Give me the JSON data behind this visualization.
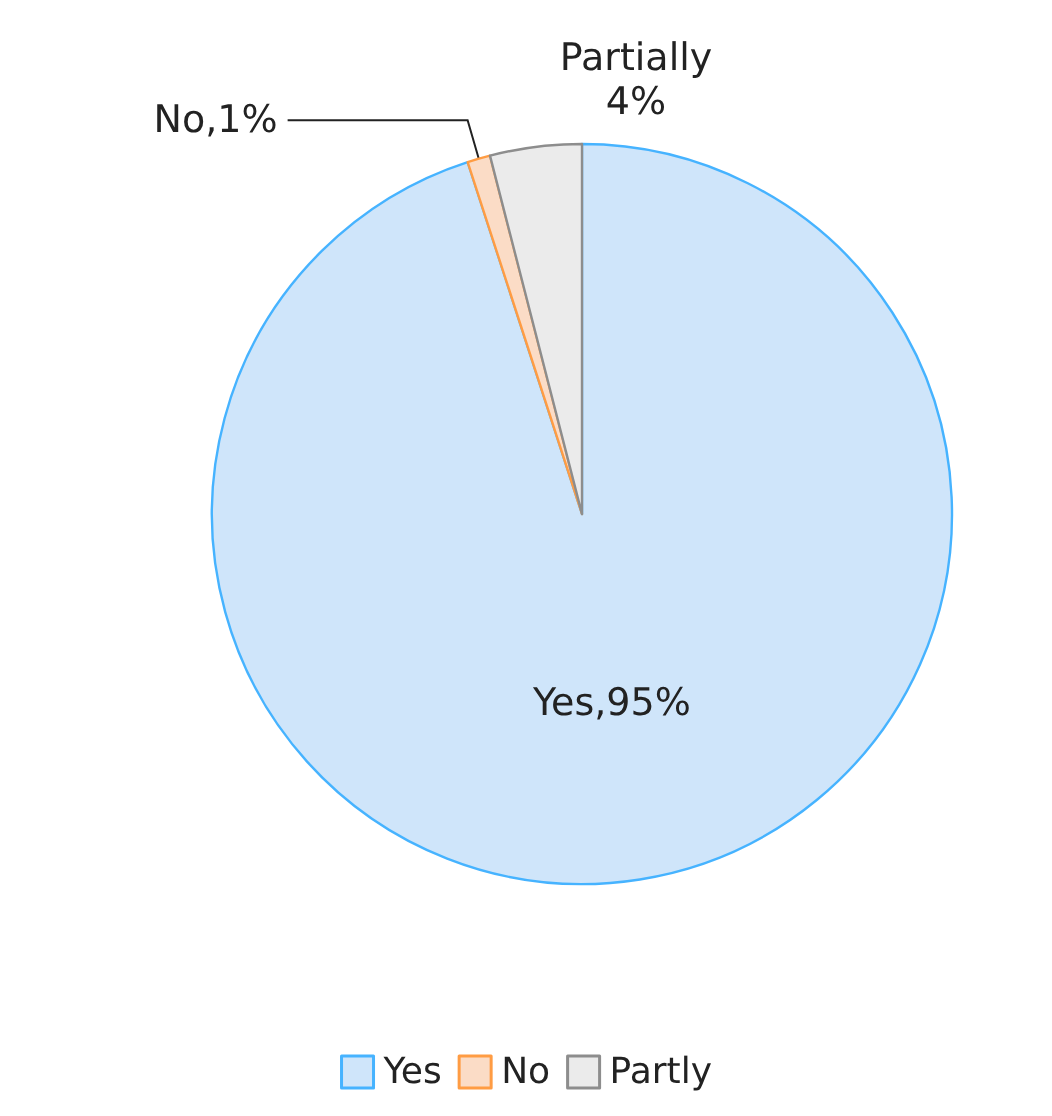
{
  "chart_data": {
    "type": "pie",
    "categories": [
      "Yes",
      "No",
      "Partly"
    ],
    "values": [
      95,
      1,
      4
    ],
    "colors": [
      "#cfe5fa",
      "#fbdcc6",
      "#ebebeb"
    ],
    "value_labels": [
      "Yes,95%",
      "No,1%",
      "Partially\n4%"
    ],
    "legend": "bottom"
  }
}
